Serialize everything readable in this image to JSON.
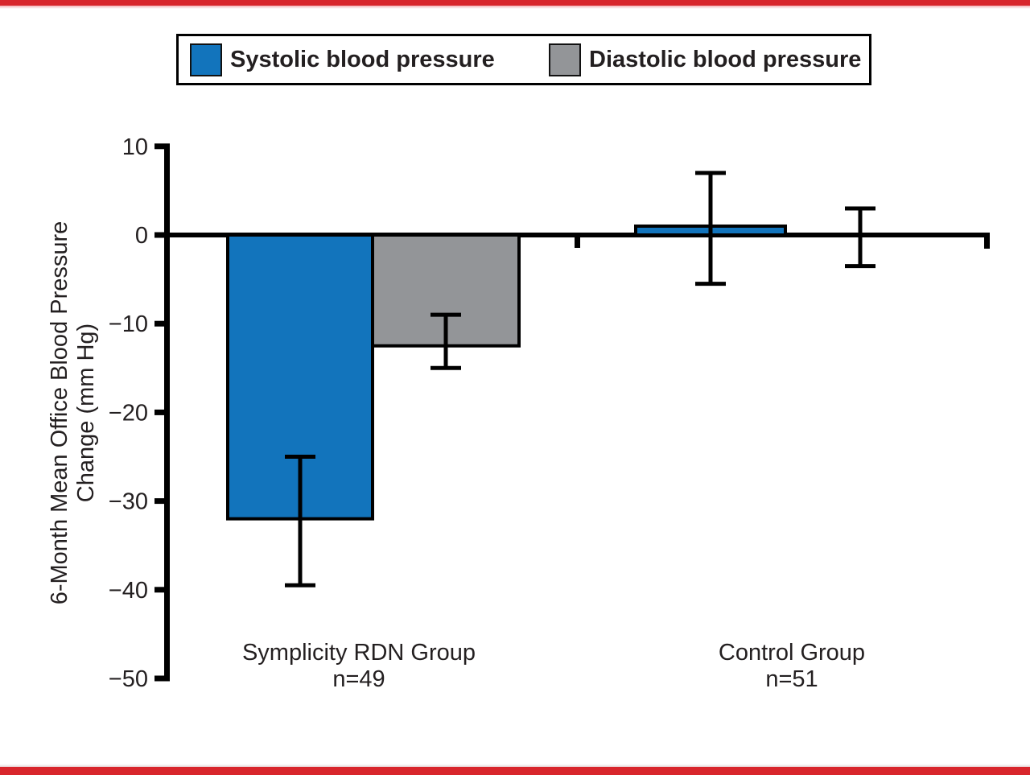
{
  "colors": {
    "accent_red": "#d8262c",
    "systolic_blue": "#1274bc",
    "diastolic_gray": "#939598",
    "axis_black": "#000000",
    "text_black": "#231f20"
  },
  "chart_data": {
    "type": "bar",
    "title": "",
    "ylabel_line1": "6-Month Mean Office Blood Pressure",
    "ylabel_line2": "Change (mm Hg)",
    "ylim": [
      -50,
      10
    ],
    "yticks": [
      10,
      0,
      -10,
      -20,
      -30,
      -40,
      -50
    ],
    "grid": false,
    "legend_position": "top",
    "groups": [
      {
        "label": "Symplicity RDN Group",
        "sublabel": "n=49"
      },
      {
        "label": "Control Group",
        "sublabel": "n=51"
      }
    ],
    "series": [
      {
        "name": "Systolic blood pressure",
        "color": "#1274bc",
        "values": [
          -32,
          1
        ],
        "err_low": [
          -39.5,
          -5.5
        ],
        "err_high": [
          -25,
          7
        ]
      },
      {
        "name": "Diastolic blood pressure",
        "color": "#939598",
        "values": [
          -12.5,
          0
        ],
        "err_low": [
          -15,
          -3.5
        ],
        "err_high": [
          -9,
          3
        ]
      }
    ]
  }
}
